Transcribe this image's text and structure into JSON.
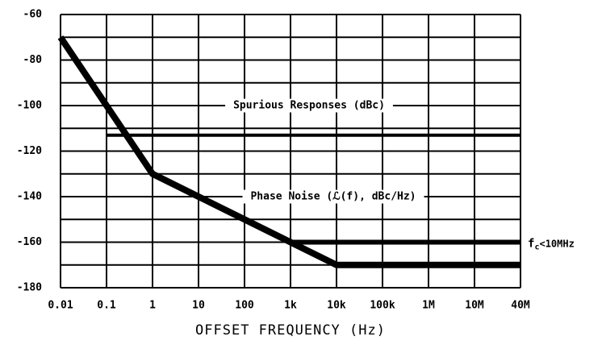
{
  "chart_data": {
    "type": "line",
    "xlabel": "OFFSET FREQUENCY (Hz)",
    "categories": [
      "0.01",
      "0.1",
      "1",
      "10",
      "100",
      "1k",
      "10k",
      "100k",
      "1M",
      "10M",
      "40M"
    ],
    "ylim": [
      -180,
      -60
    ],
    "yticks": [
      -60,
      -80,
      -100,
      -120,
      -140,
      -160,
      -180
    ],
    "yminor": [
      -70,
      -90,
      -110,
      -130,
      -150,
      -170
    ],
    "grid": true,
    "series": [
      {
        "color": "#000000",
        "width": 8,
        "values": [
          -70,
          -100,
          -130,
          -140,
          -150,
          -160,
          -170,
          -170,
          -170,
          -170,
          -170
        ]
      },
      {
        "color": "#000000",
        "width": 6,
        "values": [
          null,
          null,
          null,
          null,
          null,
          -160,
          -160,
          -160,
          -160,
          -160,
          -160
        ]
      },
      {
        "color": "#000000",
        "width": 4,
        "values": [
          null,
          -113,
          -113,
          -113,
          -113,
          -113,
          -113,
          -113,
          -113,
          -113,
          -113
        ]
      }
    ],
    "annotations": [
      "Spurious Responses (dBc)",
      "Phase Noise (ℒ(f), dBc/Hz)"
    ],
    "fc_note": {
      "label": "f",
      "subscript": "c",
      "suffix": "<10MHz"
    }
  }
}
